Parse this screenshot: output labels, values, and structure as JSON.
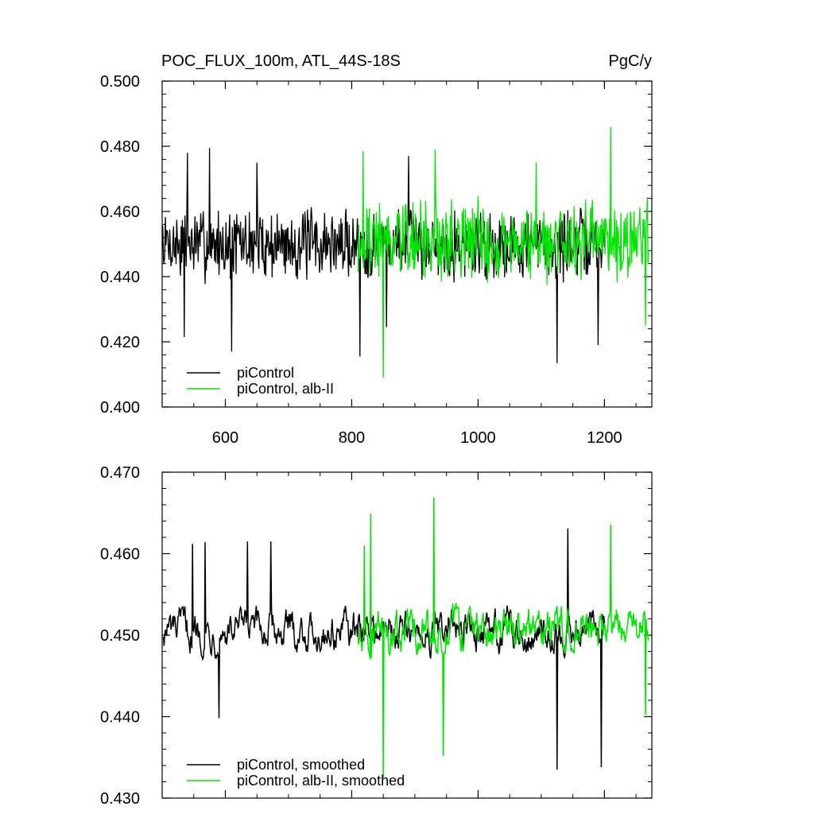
{
  "title_left": "POC_FLUX_100m, ATL_44S-18S",
  "title_right": "PgC/y",
  "colors": {
    "black_series": "#000000",
    "green_series": "#00e600",
    "axis": "#000000"
  },
  "chart_data": [
    {
      "type": "line",
      "panel": "top",
      "xlim": [
        500,
        1275
      ],
      "ylim": [
        0.4,
        0.5
      ],
      "x_ticks": [
        600,
        800,
        1000,
        1200
      ],
      "x_tick_labels": [
        "600",
        "800",
        "1000",
        "1200"
      ],
      "y_ticks": [
        0.4,
        0.42,
        0.44,
        0.46,
        0.48,
        0.5
      ],
      "y_tick_labels": [
        "0.400",
        "0.420",
        "0.440",
        "0.460",
        "0.480",
        "0.500"
      ],
      "legend": {
        "position": "bottom-left",
        "entries": [
          "piControl",
          "piControl, alb-II"
        ]
      },
      "series": [
        {
          "name": "piControl",
          "color": "#000000",
          "x": [
            500,
            1200
          ],
          "noise": {
            "mean": 0.45,
            "amp": 0.0085,
            "seed": 7,
            "smooth": false
          },
          "spikes": [
            [
              535,
              0.4215
            ],
            [
              540,
              0.478
            ],
            [
              575,
              0.4795
            ],
            [
              610,
              0.417
            ],
            [
              650,
              0.475
            ],
            [
              813,
              0.4155
            ],
            [
              855,
              0.4245
            ],
            [
              890,
              0.477
            ],
            [
              1125,
              0.4135
            ],
            [
              1190,
              0.419
            ]
          ]
        },
        {
          "name": "piControl, alb-II",
          "color": "#00e600",
          "x": [
            810,
            1270
          ],
          "noise": {
            "mean": 0.451,
            "amp": 0.0095,
            "seed": 19,
            "smooth": false
          },
          "spikes": [
            [
              818,
              0.4785
            ],
            [
              850,
              0.409
            ],
            [
              932,
              0.479
            ],
            [
              1092,
              0.475
            ],
            [
              1210,
              0.486
            ],
            [
              1265,
              0.425
            ]
          ]
        }
      ]
    },
    {
      "type": "line",
      "panel": "bottom",
      "xlim": [
        500,
        1275
      ],
      "ylim": [
        0.43,
        0.47
      ],
      "x_ticks": [
        600,
        800,
        1000,
        1200
      ],
      "y_ticks": [
        0.43,
        0.44,
        0.45,
        0.46,
        0.47
      ],
      "y_tick_labels": [
        "0.430",
        "0.440",
        "0.450",
        "0.460",
        "0.470"
      ],
      "legend": {
        "position": "bottom-left",
        "entries": [
          "piControl, smoothed",
          "piControl, alb-II, smoothed"
        ]
      },
      "series": [
        {
          "name": "piControl, smoothed",
          "color": "#000000",
          "x": [
            502,
            1200
          ],
          "noise": {
            "mean": 0.4505,
            "amp": 0.0055,
            "seed": 7,
            "smooth": true
          },
          "spikes": [
            [
              548,
              0.4612
            ],
            [
              568,
              0.4614
            ],
            [
              590,
              0.4398
            ],
            [
              635,
              0.4615
            ],
            [
              672,
              0.4615
            ],
            [
              1125,
              0.4335
            ],
            [
              1142,
              0.4631
            ],
            [
              1195,
              0.4338
            ]
          ]
        },
        {
          "name": "piControl, alb-II, smoothed",
          "color": "#00e600",
          "x": [
            810,
            1270
          ],
          "noise": {
            "mean": 0.4505,
            "amp": 0.006,
            "seed": 19,
            "smooth": true
          },
          "spikes": [
            [
              820,
              0.461
            ],
            [
              830,
              0.4649
            ],
            [
              850,
              0.4325
            ],
            [
              930,
              0.4669
            ],
            [
              945,
              0.4352
            ],
            [
              1210,
              0.4636
            ],
            [
              1265,
              0.4402
            ]
          ]
        }
      ]
    }
  ]
}
